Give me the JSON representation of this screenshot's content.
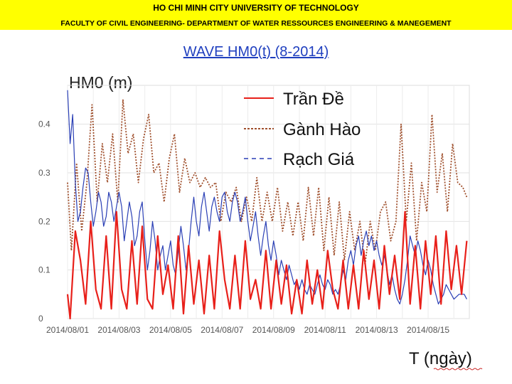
{
  "header": {
    "university": "HO CHI MINH CITY UNIVERSITY OF TECHNOLOGY",
    "department": "FACULTY OF CIVIL ENGINEERING- DEPARTMENT OF WATER RESSOURCES ENGINEERING & MANEGEMENT"
  },
  "slide_title": "WAVE HM0(t) (8-2014)",
  "chart_data": {
    "type": "line",
    "title": "",
    "ylabel": "HM0 (m)",
    "xlabel": "T (ngày)",
    "xlim": [
      0,
      15.6
    ],
    "ylim": [
      0,
      0.48
    ],
    "yticks": [
      0,
      0.1,
      0.2,
      0.3,
      0.4
    ],
    "ytick_labels": [
      "0",
      "0.1",
      "0.2",
      "0.3",
      "0.4"
    ],
    "xticks": [
      0,
      2,
      4,
      6,
      8,
      10,
      12,
      14
    ],
    "xtick_labels": [
      "2014/08/01",
      "2014/08/03",
      "2014/08/05",
      "2014/08/07",
      "2014/08/09",
      "2014/08/11",
      "2014/08/13",
      "2014/08/15"
    ],
    "grid": true,
    "legend_position": "top-center",
    "series": [
      {
        "name": "Trần Đề",
        "color": "#e8201a",
        "dash": "solid",
        "points": [
          [
            0,
            0.05
          ],
          [
            0.1,
            0
          ],
          [
            0.3,
            0.18
          ],
          [
            0.5,
            0.12
          ],
          [
            0.7,
            0.03
          ],
          [
            0.9,
            0.2
          ],
          [
            1.1,
            0.06
          ],
          [
            1.3,
            0.02
          ],
          [
            1.5,
            0.17
          ],
          [
            1.7,
            0.02
          ],
          [
            1.9,
            0.22
          ],
          [
            2.1,
            0.06
          ],
          [
            2.3,
            0.02
          ],
          [
            2.5,
            0.16
          ],
          [
            2.7,
            0.03
          ],
          [
            2.9,
            0.19
          ],
          [
            3.1,
            0.04
          ],
          [
            3.3,
            0.02
          ],
          [
            3.5,
            0.17
          ],
          [
            3.7,
            0.05
          ],
          [
            3.9,
            0.11
          ],
          [
            4.1,
            0.02
          ],
          [
            4.3,
            0.17
          ],
          [
            4.5,
            0.01
          ],
          [
            4.7,
            0.15
          ],
          [
            4.9,
            0.03
          ],
          [
            5.1,
            0.12
          ],
          [
            5.3,
            0.01
          ],
          [
            5.5,
            0.13
          ],
          [
            5.7,
            0.02
          ],
          [
            5.9,
            0.18
          ],
          [
            6.1,
            0.08
          ],
          [
            6.3,
            0.02
          ],
          [
            6.5,
            0.13
          ],
          [
            6.7,
            0.02
          ],
          [
            6.9,
            0.16
          ],
          [
            7.1,
            0.04
          ],
          [
            7.3,
            0.08
          ],
          [
            7.5,
            0.02
          ],
          [
            7.7,
            0.14
          ],
          [
            7.9,
            0.02
          ],
          [
            8.1,
            0.12
          ],
          [
            8.3,
            0.03
          ],
          [
            8.5,
            0.11
          ],
          [
            8.7,
            0.01
          ],
          [
            8.9,
            0.08
          ],
          [
            9.1,
            0.01
          ],
          [
            9.3,
            0.12
          ],
          [
            9.5,
            0.03
          ],
          [
            9.7,
            0.1
          ],
          [
            9.9,
            0.02
          ],
          [
            10.1,
            0.14
          ],
          [
            10.3,
            0.06
          ],
          [
            10.5,
            0.02
          ],
          [
            10.7,
            0.12
          ],
          [
            10.9,
            0.02
          ],
          [
            11.1,
            0.11
          ],
          [
            11.3,
            0.02
          ],
          [
            11.5,
            0.14
          ],
          [
            11.7,
            0.04
          ],
          [
            11.9,
            0.12
          ],
          [
            12.1,
            0.02
          ],
          [
            12.3,
            0.15
          ],
          [
            12.5,
            0.05
          ],
          [
            12.7,
            0.13
          ],
          [
            12.9,
            0.04
          ],
          [
            13.1,
            0.22
          ],
          [
            13.3,
            0.03
          ],
          [
            13.5,
            0.15
          ],
          [
            13.7,
            0.02
          ],
          [
            13.9,
            0.16
          ],
          [
            14.1,
            0.05
          ],
          [
            14.3,
            0.17
          ],
          [
            14.5,
            0.03
          ],
          [
            14.7,
            0.18
          ],
          [
            14.9,
            0.06
          ],
          [
            15.1,
            0.15
          ],
          [
            15.3,
            0.05
          ],
          [
            15.5,
            0.16
          ]
        ]
      },
      {
        "name": "Gành Hào",
        "color": "#a0502d",
        "dash": "dotted",
        "points": [
          [
            0,
            0.28
          ],
          [
            0.15,
            0.14
          ],
          [
            0.35,
            0.32
          ],
          [
            0.55,
            0.18
          ],
          [
            0.75,
            0.28
          ],
          [
            0.95,
            0.44
          ],
          [
            1.15,
            0.24
          ],
          [
            1.35,
            0.36
          ],
          [
            1.55,
            0.28
          ],
          [
            1.75,
            0.38
          ],
          [
            1.95,
            0.24
          ],
          [
            2.15,
            0.45
          ],
          [
            2.35,
            0.34
          ],
          [
            2.55,
            0.38
          ],
          [
            2.75,
            0.28
          ],
          [
            2.95,
            0.37
          ],
          [
            3.15,
            0.42
          ],
          [
            3.35,
            0.3
          ],
          [
            3.55,
            0.32
          ],
          [
            3.75,
            0.24
          ],
          [
            3.95,
            0.33
          ],
          [
            4.15,
            0.38
          ],
          [
            4.35,
            0.26
          ],
          [
            4.55,
            0.33
          ],
          [
            4.75,
            0.28
          ],
          [
            4.95,
            0.3
          ],
          [
            5.15,
            0.27
          ],
          [
            5.35,
            0.29
          ],
          [
            5.55,
            0.27
          ],
          [
            5.75,
            0.28
          ],
          [
            5.95,
            0.2
          ],
          [
            6.15,
            0.26
          ],
          [
            6.35,
            0.24
          ],
          [
            6.55,
            0.27
          ],
          [
            6.75,
            0.2
          ],
          [
            6.95,
            0.25
          ],
          [
            7.15,
            0.2
          ],
          [
            7.35,
            0.29
          ],
          [
            7.55,
            0.2
          ],
          [
            7.75,
            0.26
          ],
          [
            7.95,
            0.2
          ],
          [
            8.15,
            0.27
          ],
          [
            8.35,
            0.18
          ],
          [
            8.55,
            0.24
          ],
          [
            8.75,
            0.17
          ],
          [
            8.95,
            0.24
          ],
          [
            9.15,
            0.16
          ],
          [
            9.35,
            0.27
          ],
          [
            9.55,
            0.17
          ],
          [
            9.75,
            0.27
          ],
          [
            9.95,
            0.14
          ],
          [
            10.15,
            0.25
          ],
          [
            10.35,
            0.13
          ],
          [
            10.55,
            0.24
          ],
          [
            10.75,
            0.12
          ],
          [
            10.95,
            0.22
          ],
          [
            11.15,
            0.14
          ],
          [
            11.35,
            0.2
          ],
          [
            11.55,
            0.11
          ],
          [
            11.75,
            0.2
          ],
          [
            11.95,
            0.14
          ],
          [
            12.15,
            0.22
          ],
          [
            12.35,
            0.24
          ],
          [
            12.55,
            0.16
          ],
          [
            12.75,
            0.2
          ],
          [
            12.95,
            0.4
          ],
          [
            13.15,
            0.2
          ],
          [
            13.35,
            0.32
          ],
          [
            13.55,
            0.16
          ],
          [
            13.75,
            0.28
          ],
          [
            13.95,
            0.22
          ],
          [
            14.15,
            0.42
          ],
          [
            14.35,
            0.26
          ],
          [
            14.55,
            0.34
          ],
          [
            14.75,
            0.22
          ],
          [
            14.95,
            0.36
          ],
          [
            15.15,
            0.28
          ],
          [
            15.35,
            0.27
          ],
          [
            15.5,
            0.25
          ]
        ]
      },
      {
        "name": "Rạch Giá",
        "color": "#2a3fb5",
        "dash": "solid",
        "points": [
          [
            0,
            0.47
          ],
          [
            0.1,
            0.36
          ],
          [
            0.2,
            0.42
          ],
          [
            0.3,
            0.28
          ],
          [
            0.4,
            0.2
          ],
          [
            0.5,
            0.22
          ],
          [
            0.6,
            0.27
          ],
          [
            0.7,
            0.31
          ],
          [
            0.8,
            0.3
          ],
          [
            0.9,
            0.24
          ],
          [
            1.0,
            0.19
          ],
          [
            1.1,
            0.22
          ],
          [
            1.2,
            0.26
          ],
          [
            1.3,
            0.24
          ],
          [
            1.4,
            0.19
          ],
          [
            1.5,
            0.21
          ],
          [
            1.6,
            0.26
          ],
          [
            1.7,
            0.24
          ],
          [
            1.8,
            0.2
          ],
          [
            1.9,
            0.23
          ],
          [
            2.0,
            0.26
          ],
          [
            2.1,
            0.23
          ],
          [
            2.2,
            0.16
          ],
          [
            2.3,
            0.2
          ],
          [
            2.4,
            0.24
          ],
          [
            2.5,
            0.21
          ],
          [
            2.6,
            0.15
          ],
          [
            2.7,
            0.17
          ],
          [
            2.8,
            0.22
          ],
          [
            2.9,
            0.24
          ],
          [
            3.0,
            0.16
          ],
          [
            3.1,
            0.1
          ],
          [
            3.2,
            0.14
          ],
          [
            3.3,
            0.2
          ],
          [
            3.4,
            0.16
          ],
          [
            3.5,
            0.1
          ],
          [
            3.6,
            0.13
          ],
          [
            3.7,
            0.15
          ],
          [
            3.8,
            0.1
          ],
          [
            3.9,
            0.13
          ],
          [
            4.0,
            0.16
          ],
          [
            4.1,
            0.11
          ],
          [
            4.2,
            0.09
          ],
          [
            4.3,
            0.14
          ],
          [
            4.4,
            0.19
          ],
          [
            4.5,
            0.15
          ],
          [
            4.6,
            0.1
          ],
          [
            4.7,
            0.14
          ],
          [
            4.8,
            0.2
          ],
          [
            4.9,
            0.25
          ],
          [
            5.0,
            0.2
          ],
          [
            5.1,
            0.17
          ],
          [
            5.2,
            0.23
          ],
          [
            5.3,
            0.26
          ],
          [
            5.4,
            0.22
          ],
          [
            5.5,
            0.18
          ],
          [
            5.6,
            0.23
          ],
          [
            5.7,
            0.25
          ],
          [
            5.8,
            0.22
          ],
          [
            5.9,
            0.2
          ],
          [
            6.0,
            0.25
          ],
          [
            6.1,
            0.26
          ],
          [
            6.2,
            0.22
          ],
          [
            6.3,
            0.2
          ],
          [
            6.4,
            0.24
          ],
          [
            6.5,
            0.26
          ],
          [
            6.6,
            0.24
          ],
          [
            6.7,
            0.2
          ],
          [
            6.8,
            0.22
          ],
          [
            6.9,
            0.25
          ],
          [
            7.0,
            0.2
          ],
          [
            7.1,
            0.16
          ],
          [
            7.2,
            0.19
          ],
          [
            7.3,
            0.22
          ],
          [
            7.4,
            0.17
          ],
          [
            7.5,
            0.13
          ],
          [
            7.6,
            0.17
          ],
          [
            7.7,
            0.2
          ],
          [
            7.8,
            0.15
          ],
          [
            7.9,
            0.12
          ],
          [
            8.0,
            0.16
          ],
          [
            8.1,
            0.13
          ],
          [
            8.2,
            0.09
          ],
          [
            8.3,
            0.12
          ],
          [
            8.4,
            0.1
          ],
          [
            8.5,
            0.08
          ],
          [
            8.6,
            0.11
          ],
          [
            8.7,
            0.09
          ],
          [
            8.8,
            0.07
          ],
          [
            8.9,
            0.08
          ],
          [
            9.0,
            0.06
          ],
          [
            9.1,
            0.08
          ],
          [
            9.2,
            0.06
          ],
          [
            9.3,
            0.05
          ],
          [
            9.4,
            0.07
          ],
          [
            9.5,
            0.06
          ],
          [
            9.6,
            0.05
          ],
          [
            9.7,
            0.07
          ],
          [
            9.8,
            0.09
          ],
          [
            9.9,
            0.07
          ],
          [
            10.0,
            0.06
          ],
          [
            10.1,
            0.08
          ],
          [
            10.2,
            0.07
          ],
          [
            10.3,
            0.05
          ],
          [
            10.4,
            0.06
          ],
          [
            10.5,
            0.05
          ],
          [
            10.6,
            0.07
          ],
          [
            10.7,
            0.1
          ],
          [
            10.8,
            0.08
          ],
          [
            10.9,
            0.12
          ],
          [
            11.0,
            0.14
          ],
          [
            11.1,
            0.11
          ],
          [
            11.2,
            0.15
          ],
          [
            11.3,
            0.17
          ],
          [
            11.4,
            0.13
          ],
          [
            11.5,
            0.16
          ],
          [
            11.6,
            0.18
          ],
          [
            11.7,
            0.15
          ],
          [
            11.8,
            0.17
          ],
          [
            11.9,
            0.14
          ],
          [
            12.0,
            0.16
          ],
          [
            12.1,
            0.13
          ],
          [
            12.2,
            0.11
          ],
          [
            12.3,
            0.13
          ],
          [
            12.4,
            0.1
          ],
          [
            12.5,
            0.07
          ],
          [
            12.6,
            0.09
          ],
          [
            12.7,
            0.06
          ],
          [
            12.8,
            0.04
          ],
          [
            12.9,
            0.03
          ],
          [
            13.0,
            0.05
          ],
          [
            13.1,
            0.08
          ],
          [
            13.2,
            0.12
          ],
          [
            13.3,
            0.17
          ],
          [
            13.4,
            0.15
          ],
          [
            13.5,
            0.13
          ],
          [
            13.6,
            0.16
          ],
          [
            13.7,
            0.14
          ],
          [
            13.8,
            0.11
          ],
          [
            13.9,
            0.09
          ],
          [
            14.0,
            0.12
          ],
          [
            14.1,
            0.1
          ],
          [
            14.2,
            0.07
          ],
          [
            14.3,
            0.05
          ],
          [
            14.4,
            0.03
          ],
          [
            14.5,
            0.04
          ],
          [
            14.6,
            0.05
          ],
          [
            14.7,
            0.07
          ],
          [
            14.8,
            0.06
          ],
          [
            14.9,
            0.05
          ],
          [
            15.0,
            0.04
          ],
          [
            15.2,
            0.05
          ],
          [
            15.4,
            0.05
          ],
          [
            15.5,
            0.04
          ]
        ]
      }
    ]
  }
}
